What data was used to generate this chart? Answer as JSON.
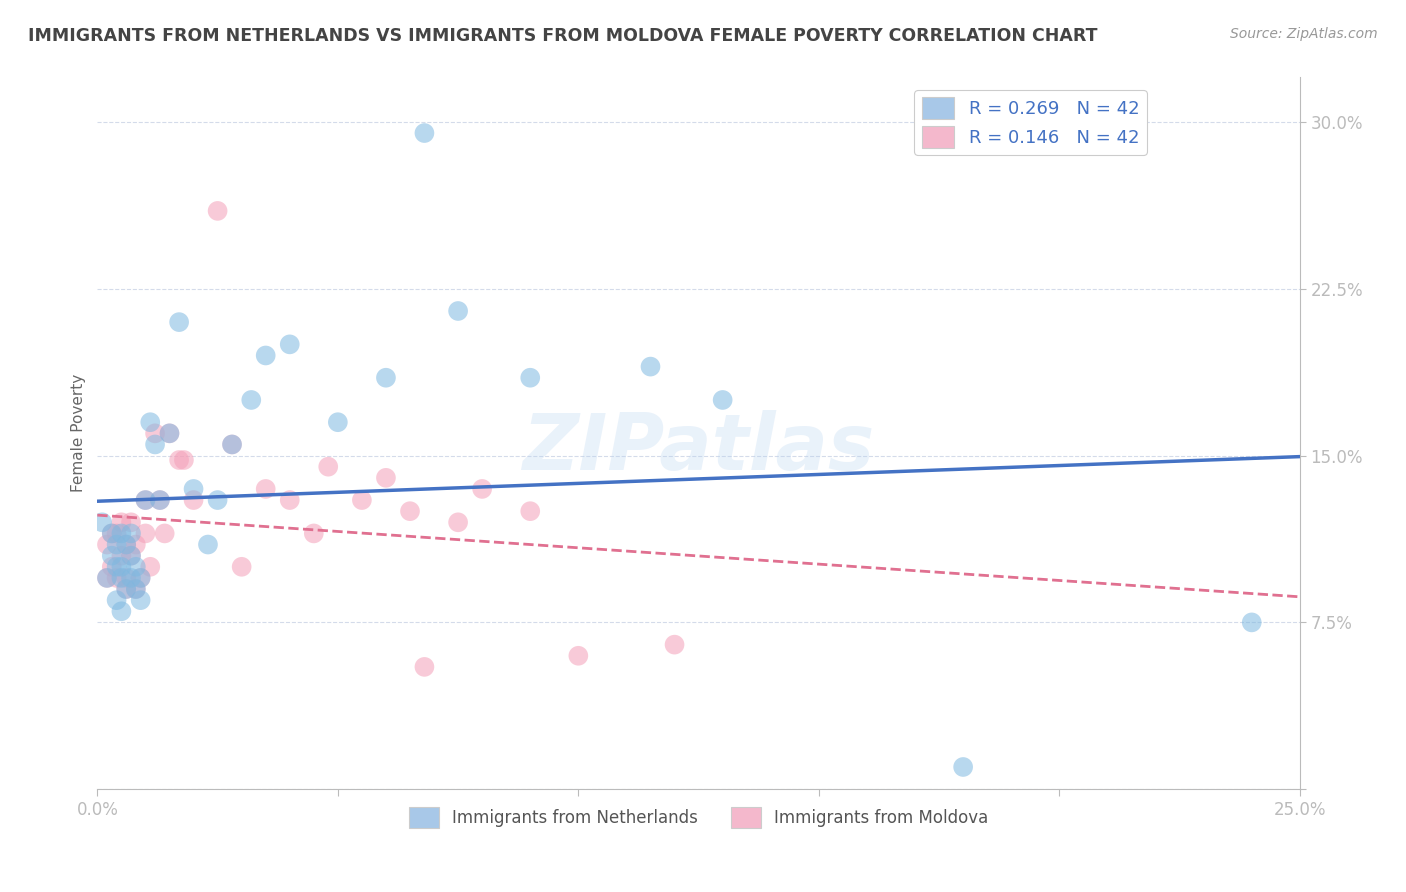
{
  "title": "IMMIGRANTS FROM NETHERLANDS VS IMMIGRANTS FROM MOLDOVA FEMALE POVERTY CORRELATION CHART",
  "source": "Source: ZipAtlas.com",
  "ylabel": "Female Poverty",
  "watermark": "ZIPatlas",
  "xlim": [
    0.0,
    0.25
  ],
  "ylim": [
    0.0,
    0.32
  ],
  "legend_color1": "#a8c8e8",
  "legend_color2": "#f4b8cc",
  "series1_color": "#7eb8e0",
  "series2_color": "#f4a0b8",
  "line1_color": "#4472c4",
  "line2_color": "#e07090",
  "legend_text_color": "#4472c4",
  "title_color": "#444444",
  "axis_color": "#4472c4",
  "grid_color": "#d0d8e8",
  "netherlands_x": [
    0.001,
    0.002,
    0.003,
    0.003,
    0.004,
    0.004,
    0.004,
    0.005,
    0.005,
    0.005,
    0.005,
    0.006,
    0.006,
    0.007,
    0.007,
    0.007,
    0.008,
    0.008,
    0.009,
    0.009,
    0.01,
    0.011,
    0.012,
    0.013,
    0.015,
    0.017,
    0.02,
    0.023,
    0.025,
    0.028,
    0.032,
    0.035,
    0.04,
    0.05,
    0.06,
    0.068,
    0.075,
    0.09,
    0.115,
    0.13,
    0.18,
    0.24
  ],
  "netherlands_y": [
    0.12,
    0.095,
    0.105,
    0.115,
    0.1,
    0.11,
    0.085,
    0.095,
    0.115,
    0.1,
    0.08,
    0.09,
    0.11,
    0.095,
    0.105,
    0.115,
    0.09,
    0.1,
    0.085,
    0.095,
    0.13,
    0.165,
    0.155,
    0.13,
    0.16,
    0.21,
    0.135,
    0.11,
    0.13,
    0.155,
    0.175,
    0.195,
    0.2,
    0.165,
    0.185,
    0.295,
    0.215,
    0.185,
    0.19,
    0.175,
    0.01,
    0.075
  ],
  "moldova_x": [
    0.002,
    0.002,
    0.003,
    0.003,
    0.004,
    0.004,
    0.005,
    0.005,
    0.006,
    0.006,
    0.006,
    0.007,
    0.007,
    0.008,
    0.008,
    0.009,
    0.01,
    0.01,
    0.011,
    0.012,
    0.013,
    0.014,
    0.015,
    0.017,
    0.018,
    0.02,
    0.025,
    0.028,
    0.03,
    0.035,
    0.04,
    0.045,
    0.048,
    0.055,
    0.06,
    0.065,
    0.068,
    0.075,
    0.08,
    0.09,
    0.1,
    0.12
  ],
  "moldova_y": [
    0.095,
    0.11,
    0.1,
    0.115,
    0.095,
    0.115,
    0.105,
    0.12,
    0.09,
    0.11,
    0.095,
    0.105,
    0.12,
    0.09,
    0.11,
    0.095,
    0.115,
    0.13,
    0.1,
    0.16,
    0.13,
    0.115,
    0.16,
    0.148,
    0.148,
    0.13,
    0.26,
    0.155,
    0.1,
    0.135,
    0.13,
    0.115,
    0.145,
    0.13,
    0.14,
    0.125,
    0.055,
    0.12,
    0.135,
    0.125,
    0.06,
    0.065
  ]
}
